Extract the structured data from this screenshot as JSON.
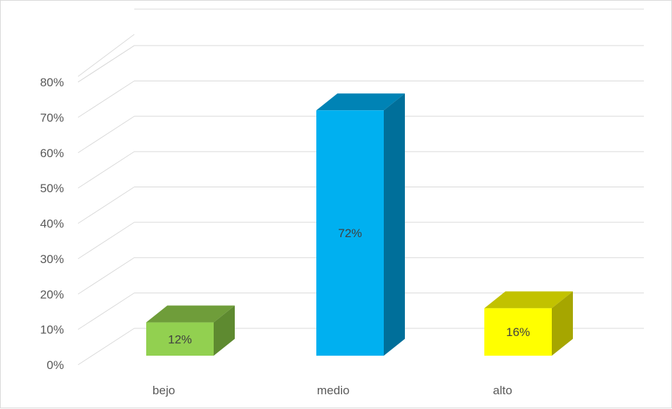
{
  "chart_data": {
    "type": "bar",
    "style": "3d-column",
    "categories": [
      "bejo",
      "medio",
      "alto"
    ],
    "values": [
      12,
      72,
      16
    ],
    "data_labels": [
      "12%",
      "72%",
      "16%"
    ],
    "y_ticks": [
      "0%",
      "10%",
      "20%",
      "30%",
      "40%",
      "50%",
      "60%",
      "70%",
      "80%"
    ],
    "ylim": [
      0,
      80
    ],
    "y_unit": "%",
    "grid": true,
    "legend": "none",
    "colors": {
      "bejo": {
        "front": "#92d050",
        "side": "#5e8a30",
        "top": "#6f9d3a"
      },
      "medio": {
        "front": "#00b0f0",
        "side": "#006f9a",
        "top": "#0083b5"
      },
      "alto": {
        "front": "#ffff00",
        "side": "#a6a600",
        "top": "#c2c200"
      }
    },
    "gridline_color": "#d9d9d9",
    "text_color": "#595959"
  }
}
